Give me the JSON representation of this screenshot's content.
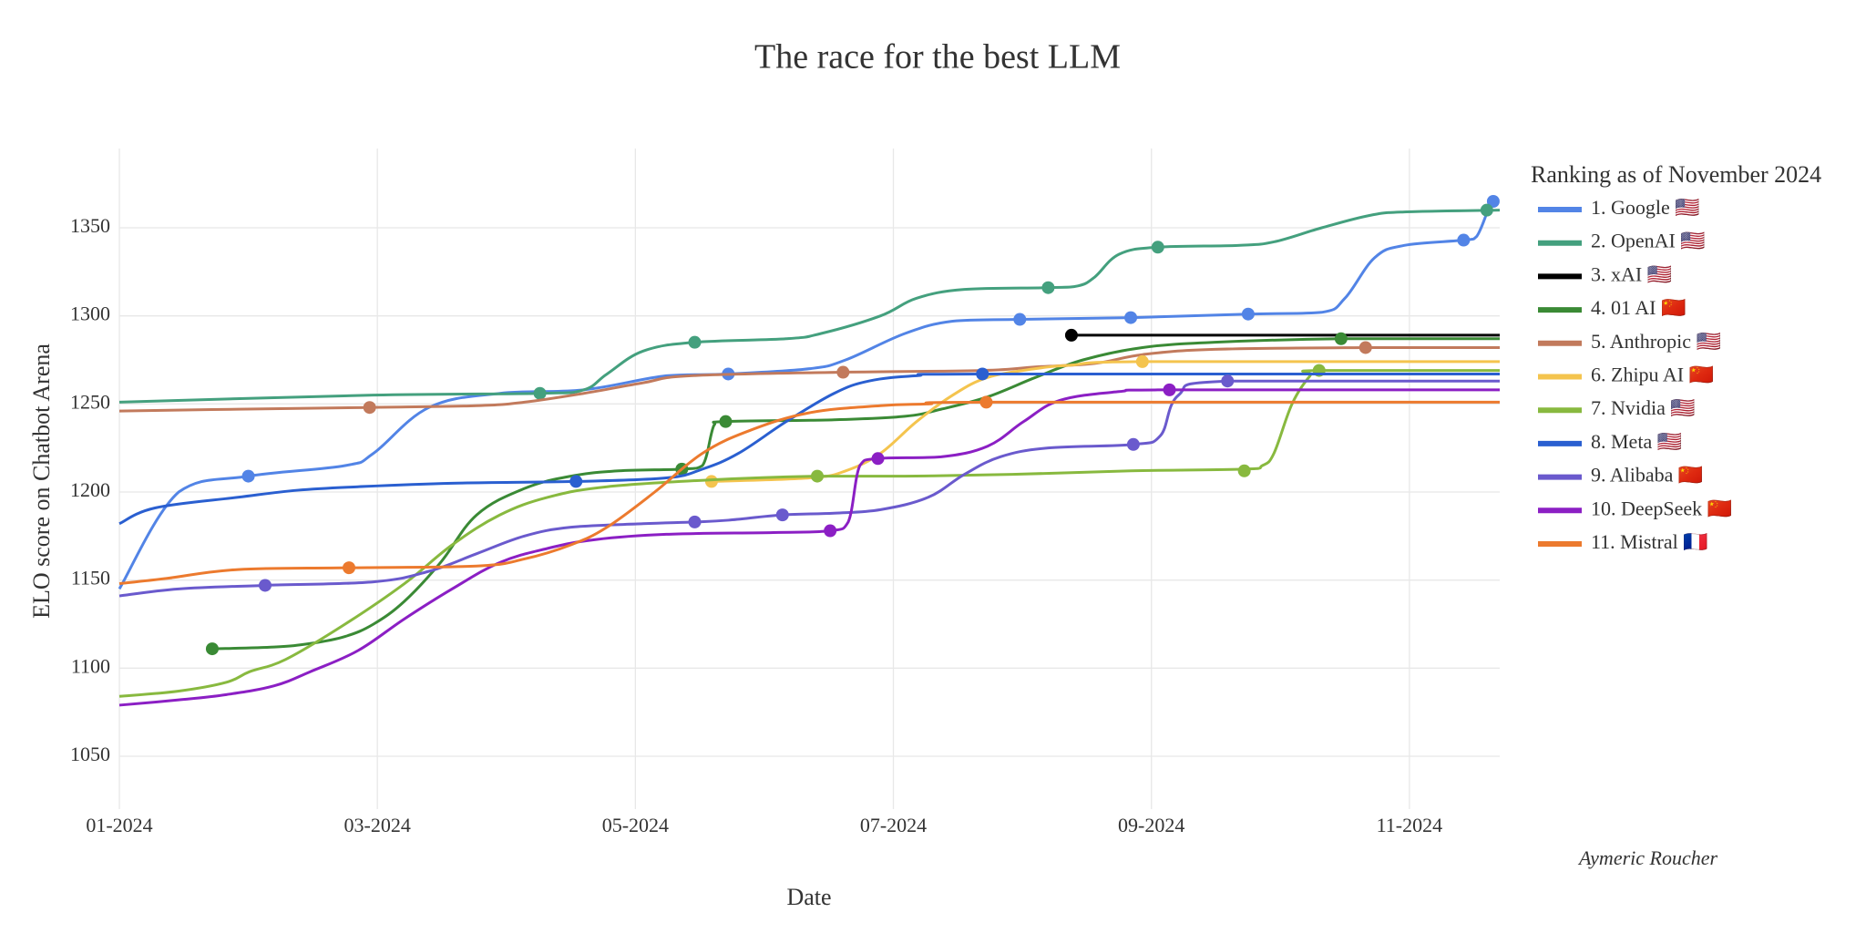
{
  "chart_data": {
    "type": "line",
    "title": "The race for the best LLM",
    "x_label": "Date",
    "y_label": "ELO score on Chatbot Arena",
    "legend_title": "Ranking as of November 2024",
    "annotation": "Aymeric Roucher",
    "grid": true,
    "xlim": [
      0,
      10.7
    ],
    "xticks": [
      {
        "value": 0,
        "label": "01-2024"
      },
      {
        "value": 2,
        "label": "03-2024"
      },
      {
        "value": 4,
        "label": "05-2024"
      },
      {
        "value": 6,
        "label": "07-2024"
      },
      {
        "value": 8,
        "label": "09-2024"
      },
      {
        "value": 10,
        "label": "11-2024"
      }
    ],
    "ylim": [
      1020,
      1395
    ],
    "yticks": [
      1050,
      1100,
      1150,
      1200,
      1250,
      1300,
      1350
    ],
    "series": [
      {
        "name": "1. Google 🇺🇸",
        "color": "#5284e6",
        "x": [
          0,
          0.46,
          1.0,
          1.75,
          1.97,
          2.4,
          2.95,
          3.6,
          4.24,
          4.72,
          5.35,
          5.63,
          6.09,
          6.46,
          6.98,
          7.84,
          8.75,
          9.32,
          9.5,
          9.73,
          9.96,
          10.42,
          10.52,
          10.61,
          10.65
        ],
        "values": [
          1145,
          1200,
          1209,
          1215,
          1222,
          1248,
          1256,
          1258,
          1266,
          1267,
          1270,
          1275,
          1290,
          1297,
          1298,
          1299,
          1301,
          1302,
          1310,
          1333,
          1340,
          1343,
          1345,
          1360,
          1365
        ],
        "markers": {
          "x": [
            1.0,
            4.72,
            6.98,
            7.84,
            8.75,
            10.42,
            10.65
          ],
          "values": [
            1209,
            1267,
            1298,
            1299,
            1301,
            1343,
            1365
          ]
        }
      },
      {
        "name": "2. OpenAI 🇺🇸",
        "color": "#44a07e",
        "x": [
          0,
          1.97,
          3.26,
          3.6,
          3.78,
          4.06,
          4.46,
          5.17,
          5.44,
          5.9,
          6.18,
          6.55,
          7.2,
          7.43,
          7.56,
          7.75,
          8.05,
          8.67,
          8.95,
          9.32,
          9.69,
          9.96,
          10.7
        ],
        "values": [
          1251,
          1255,
          1256,
          1258,
          1267,
          1280,
          1285,
          1287,
          1290,
          1300,
          1310,
          1315,
          1316,
          1317,
          1322,
          1335,
          1339,
          1340,
          1342,
          1350,
          1357,
          1359,
          1360
        ],
        "markers": {
          "x": [
            3.26,
            4.46,
            7.2,
            8.05,
            10.6
          ],
          "values": [
            1256,
            1285,
            1316,
            1339,
            1360
          ]
        }
      },
      {
        "name": "3. xAI 🇺🇸",
        "color": "#000000",
        "x": [
          7.38,
          10.7
        ],
        "values": [
          1289,
          1289
        ],
        "markers": {
          "x": [
            7.38
          ],
          "values": [
            1289
          ]
        }
      },
      {
        "name": "4. 01 AI 🇨🇳",
        "color": "#3a8a35",
        "x": [
          0.72,
          1.2,
          1.48,
          1.75,
          1.97,
          2.21,
          2.49,
          2.77,
          3.14,
          3.5,
          3.87,
          4.36,
          4.52,
          4.61,
          4.7,
          5.54,
          6.09,
          6.37,
          6.73,
          7.1,
          7.47,
          7.93,
          8.49,
          9.47,
          10.7
        ],
        "values": [
          1111,
          1112,
          1114,
          1118,
          1125,
          1138,
          1160,
          1187,
          1202,
          1209,
          1212,
          1213,
          1215,
          1238,
          1240,
          1241,
          1243,
          1247,
          1254,
          1265,
          1275,
          1282,
          1285,
          1287,
          1287
        ],
        "markers": {
          "x": [
            0.72,
            4.36,
            4.7,
            9.47
          ],
          "values": [
            1111,
            1213,
            1240,
            1287
          ]
        }
      },
      {
        "name": "5. Anthropic 🇺🇸",
        "color": "#c27a5c",
        "x": [
          0,
          0.92,
          1.94,
          2.77,
          3.14,
          3.6,
          4.06,
          4.43,
          5.61,
          6.69,
          7.1,
          7.56,
          7.93,
          8.49,
          9.66,
          10.7
        ],
        "values": [
          1246,
          1247,
          1248,
          1249,
          1251,
          1256,
          1262,
          1266,
          1268,
          1269,
          1271,
          1273,
          1278,
          1281,
          1282,
          1282
        ],
        "markers": {
          "x": [
            1.94,
            5.61,
            9.66
          ],
          "values": [
            1248,
            1268,
            1282
          ]
        }
      },
      {
        "name": "6. Zhipu AI 🇨🇳",
        "color": "#f4c44e",
        "x": [
          4.59,
          5.35,
          5.63,
          5.9,
          6.18,
          6.46,
          6.73,
          7.1,
          7.38,
          7.93,
          10.7
        ],
        "values": [
          1206,
          1208,
          1212,
          1222,
          1240,
          1255,
          1265,
          1270,
          1272,
          1274,
          1274
        ],
        "markers": {
          "x": [
            4.59,
            7.93
          ],
          "values": [
            1206,
            1274
          ]
        }
      },
      {
        "name": "7. Nvidia 🇺🇸",
        "color": "#88b93f",
        "x": [
          0,
          0.46,
          0.83,
          1.01,
          1.29,
          1.75,
          2.21,
          2.58,
          2.95,
          3.32,
          3.78,
          4.61,
          5.41,
          6.09,
          6.92,
          7.84,
          8.72,
          8.86,
          8.95,
          9.09,
          9.23,
          9.3,
          10.7
        ],
        "values": [
          1084,
          1087,
          1092,
          1098,
          1105,
          1125,
          1148,
          1170,
          1187,
          1197,
          1203,
          1207,
          1209,
          1209,
          1210,
          1212,
          1213,
          1215,
          1222,
          1250,
          1266,
          1269,
          1269
        ],
        "markers": {
          "x": [
            5.41,
            8.72,
            9.3
          ],
          "values": [
            1209,
            1212,
            1269
          ]
        }
      },
      {
        "name": "8. Meta 🇺🇸",
        "color": "#2a5fd0",
        "x": [
          0,
          0.28,
          0.92,
          1.38,
          1.85,
          2.58,
          3.54,
          4.24,
          4.52,
          4.8,
          5.17,
          5.54,
          5.81,
          6.18,
          6.69,
          10.7
        ],
        "values": [
          1182,
          1191,
          1197,
          1201,
          1203,
          1205,
          1206,
          1208,
          1213,
          1222,
          1240,
          1256,
          1263,
          1266,
          1267,
          1267
        ],
        "markers": {
          "x": [
            3.54,
            6.69
          ],
          "values": [
            1206,
            1267
          ]
        }
      },
      {
        "name": "9. Alibaba 🇨🇳",
        "color": "#6a5acd",
        "x": [
          0,
          0.46,
          1.13,
          1.97,
          2.4,
          2.77,
          3.14,
          3.5,
          4.06,
          4.46,
          4.72,
          5.14,
          5.54,
          5.9,
          6.27,
          6.55,
          6.83,
          7.2,
          7.86,
          8.07,
          8.21,
          8.59,
          10.7
        ],
        "values": [
          1141,
          1145,
          1147,
          1149,
          1155,
          1165,
          1175,
          1180,
          1182,
          1183,
          1184,
          1187,
          1188,
          1190,
          1197,
          1210,
          1220,
          1225,
          1227,
          1232,
          1255,
          1263,
          1263
        ],
        "markers": {
          "x": [
            1.13,
            4.46,
            5.14,
            7.86,
            8.59
          ],
          "values": [
            1147,
            1183,
            1187,
            1227,
            1263
          ]
        }
      },
      {
        "name": "10. DeepSeek 🇨🇳",
        "color": "#8b1fc4",
        "x": [
          0,
          0.46,
          0.83,
          1.2,
          1.48,
          1.85,
          2.21,
          2.58,
          2.95,
          3.32,
          3.69,
          4.24,
          5.07,
          5.51,
          5.65,
          5.74,
          5.88,
          6.37,
          6.73,
          7.01,
          7.29,
          7.75,
          8.14,
          10.7
        ],
        "values": [
          1079,
          1082,
          1085,
          1090,
          1098,
          1110,
          1128,
          1145,
          1160,
          1168,
          1173,
          1176,
          1177,
          1178,
          1183,
          1215,
          1219,
          1220,
          1226,
          1240,
          1252,
          1257,
          1258,
          1258
        ],
        "markers": {
          "x": [
            5.51,
            5.88,
            8.14
          ],
          "values": [
            1178,
            1219,
            1258
          ]
        }
      },
      {
        "name": "11. Mistral 🇫🇷",
        "color": "#ec7a2e",
        "x": [
          0,
          0.37,
          0.92,
          1.78,
          2.77,
          3.14,
          3.5,
          3.78,
          4.15,
          4.52,
          4.89,
          5.35,
          5.9,
          6.27,
          6.72,
          10.7
        ],
        "values": [
          1148,
          1151,
          1156,
          1157,
          1158,
          1162,
          1170,
          1180,
          1200,
          1222,
          1235,
          1245,
          1249,
          1250,
          1251,
          1251
        ],
        "markers": {
          "x": [
            1.78,
            6.72
          ],
          "values": [
            1157,
            1251
          ]
        }
      }
    ]
  }
}
